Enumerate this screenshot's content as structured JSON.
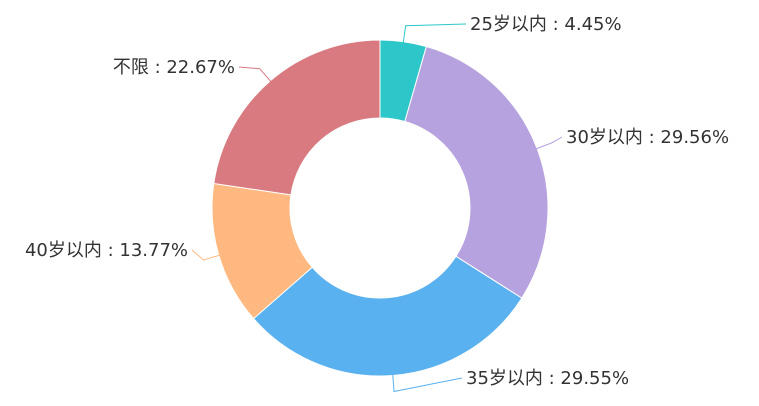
{
  "chart_data": {
    "type": "pie",
    "variant": "donut",
    "title": "",
    "legend": "none",
    "start_angle_deg": 90,
    "direction": "clockwise",
    "slices": [
      {
        "label": "25岁以内",
        "value": 4.45,
        "value_text": "4.45%",
        "color": "#2ec7c9"
      },
      {
        "label": "30岁以内",
        "value": 29.56,
        "value_text": "29.56%",
        "color": "#b6a2de"
      },
      {
        "label": "35岁以内",
        "value": 29.55,
        "value_text": "29.55%",
        "color": "#5ab1ef"
      },
      {
        "label": "40岁以内",
        "value": 13.77,
        "value_text": "13.77%",
        "color": "#ffb980"
      },
      {
        "label": "不限",
        "value": 22.67,
        "value_text": "22.67%",
        "color": "#d87a80"
      }
    ]
  }
}
